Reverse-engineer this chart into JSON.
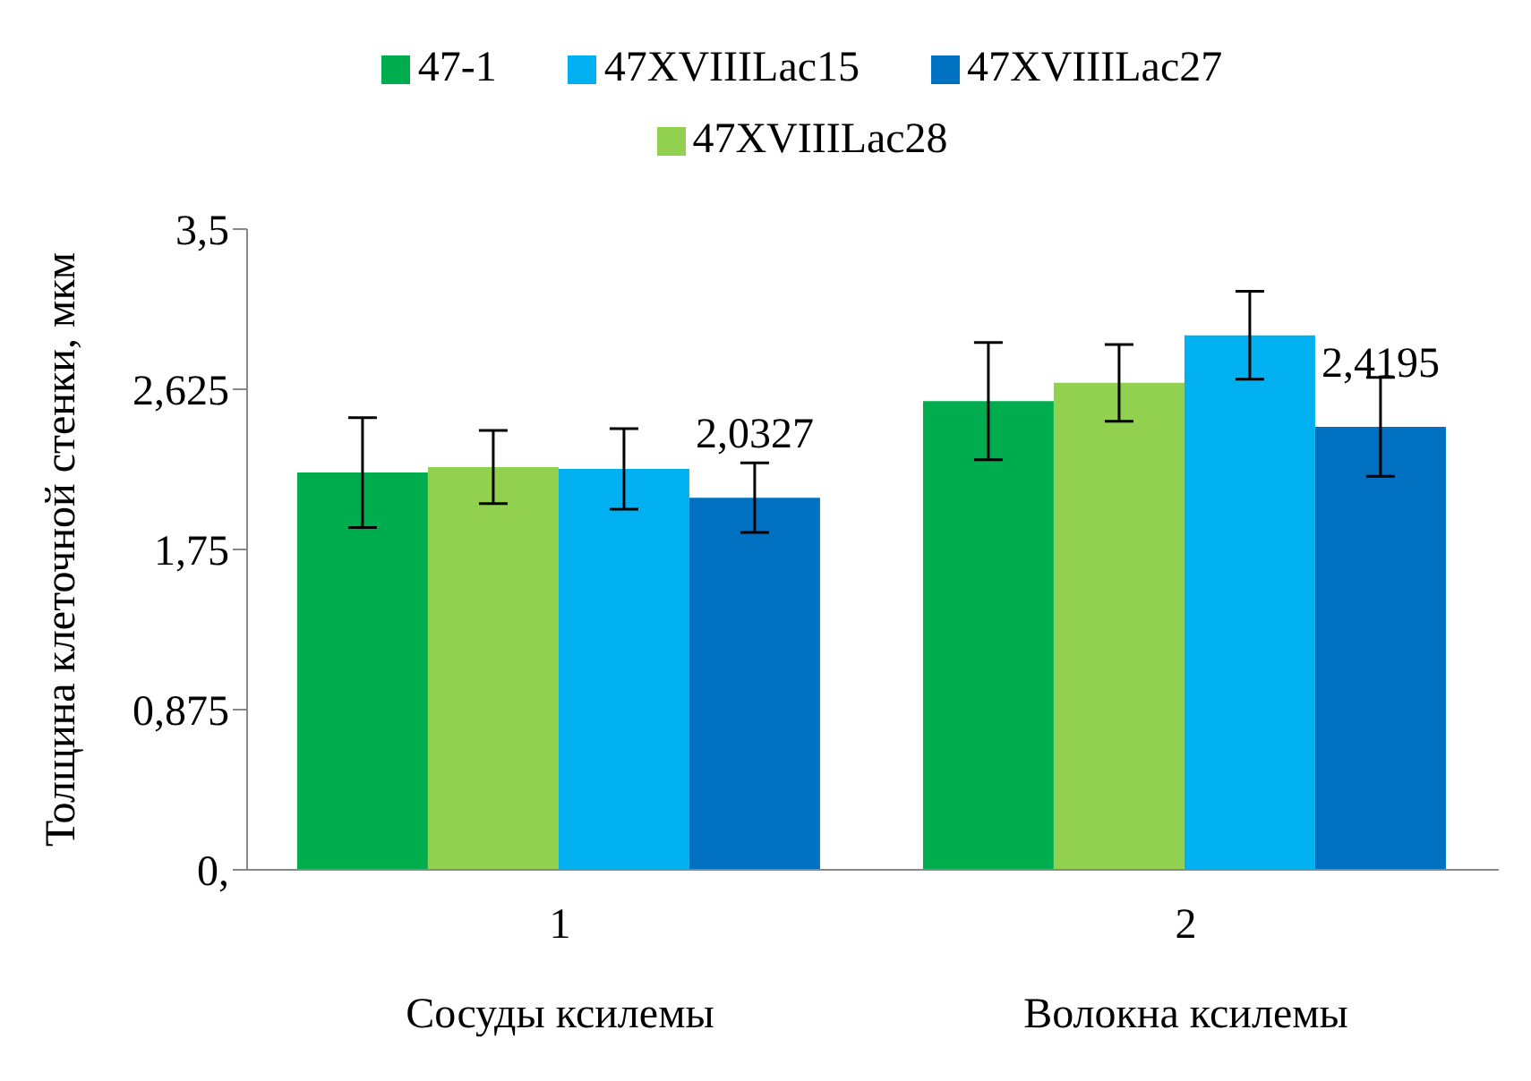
{
  "chart_data": {
    "type": "bar",
    "ylabel": "Толщина клеточной стенки, мкм",
    "categories": [
      "1",
      "2"
    ],
    "series": [
      {
        "name": "47-1",
        "color": "#00ad4e",
        "values": [
          2.17,
          2.56
        ],
        "errors": [
          0.3,
          0.32
        ]
      },
      {
        "name": "47XVIIILac28",
        "color": "#92d050",
        "values": [
          2.2,
          2.66
        ],
        "errors": [
          0.2,
          0.21
        ]
      },
      {
        "name": "47XVIIILac15",
        "color": "#00b0f0",
        "values": [
          2.19,
          2.92
        ],
        "errors": [
          0.22,
          0.24
        ]
      },
      {
        "name": "47XVIIILac27",
        "color": "#0070c0",
        "values": [
          2.0327,
          2.4195
        ],
        "errors": [
          0.19,
          0.27
        ],
        "value_labels": [
          "2,0327",
          "2,4195"
        ]
      }
    ],
    "ylim": [
      0,
      3.5
    ],
    "yticks": [
      {
        "value": 0,
        "label": "0,"
      },
      {
        "value": 0.875,
        "label": "0,875"
      },
      {
        "value": 1.75,
        "label": "1,75"
      },
      {
        "value": 2.625,
        "label": "2,625"
      },
      {
        "value": 3.5,
        "label": "3,5"
      }
    ],
    "annotations": [
      "Сосуды ксилемы",
      "Волокна ксилемы"
    ],
    "grid": false,
    "legend": "top"
  }
}
